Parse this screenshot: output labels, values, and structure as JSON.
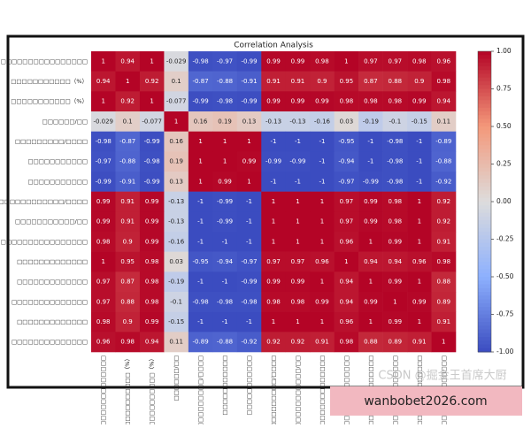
{
  "chart_data": {
    "type": "heatmap",
    "title": "Correlation Analysis",
    "colormap": "coolwarm",
    "clim": [
      -1,
      1
    ],
    "colorbar_ticks": [
      {
        "value": -1,
        "label": "-1.00"
      },
      {
        "value": -0.75,
        "label": "-0.75"
      },
      {
        "value": -0.5,
        "label": "-0.50"
      },
      {
        "value": -0.25,
        "label": "-0.25"
      },
      {
        "value": 0,
        "label": "0.00"
      },
      {
        "value": 0.25,
        "label": "0.25"
      },
      {
        "value": 0.5,
        "label": "0.50"
      },
      {
        "value": 0.75,
        "label": "0.75"
      },
      {
        "value": 1,
        "label": "1.00"
      }
    ],
    "categories": [
      "□□□□□□□□□□□□□□□□",
      "□□□□□□□□□□□（%）",
      "□□□□□□□□□□□（%）",
      "□□□□□□/□□",
      "□□□□□□□□□/□□□□",
      "□□□□□□□□□□□",
      "□□□□□□□□□□□",
      "□□□□□□□□□□□□/□□□□",
      "□□□□□□□□□□□/□□",
      "□□□□□□□□□□□□□□□□",
      "□□□□□□□□□□□□□",
      "□□□□□□□□□□□□□",
      "□□□□□□□□□□□□□□",
      "□□□□□□□□□□□□□",
      "□□□□□□□□□□□□□□"
    ],
    "z": [
      [
        1,
        0.94,
        1,
        -0.029,
        -0.98,
        -0.97,
        -0.99,
        0.99,
        0.99,
        0.98,
        1,
        0.97,
        0.97,
        0.98,
        0.96
      ],
      [
        0.94,
        1,
        0.92,
        0.1,
        -0.87,
        -0.88,
        -0.91,
        0.91,
        0.91,
        0.9,
        0.95,
        0.87,
        0.88,
        0.9,
        0.98
      ],
      [
        1,
        0.92,
        1,
        -0.077,
        -0.99,
        -0.98,
        -0.99,
        0.99,
        0.99,
        0.99,
        0.98,
        0.98,
        0.98,
        0.99,
        0.94
      ],
      [
        -0.029,
        0.1,
        -0.077,
        1,
        0.16,
        0.19,
        0.13,
        -0.13,
        -0.13,
        -0.16,
        0.03,
        -0.19,
        -0.1,
        -0.15,
        0.11
      ],
      [
        -0.98,
        -0.87,
        -0.99,
        0.16,
        1,
        1,
        1,
        -1,
        -1,
        -1,
        -0.95,
        -1,
        -0.98,
        -1,
        -0.89
      ],
      [
        -0.97,
        -0.88,
        -0.98,
        0.19,
        1,
        1,
        0.99,
        -0.99,
        -0.99,
        -1,
        -0.94,
        -1,
        -0.98,
        -1,
        -0.88
      ],
      [
        -0.99,
        -0.91,
        -0.99,
        0.13,
        1,
        0.99,
        1,
        -1,
        -1,
        -1,
        -0.97,
        -0.99,
        -0.98,
        -1,
        -0.92
      ],
      [
        0.99,
        0.91,
        0.99,
        -0.13,
        -1,
        -0.99,
        -1,
        1,
        1,
        1,
        0.97,
        0.99,
        0.98,
        1,
        0.92
      ],
      [
        0.99,
        0.91,
        0.99,
        -0.13,
        -1,
        -0.99,
        -1,
        1,
        1,
        1,
        0.97,
        0.99,
        0.98,
        1,
        0.92
      ],
      [
        0.98,
        0.9,
        0.99,
        -0.16,
        -1,
        -1,
        -1,
        1,
        1,
        1,
        0.96,
        1,
        0.99,
        1,
        0.91
      ],
      [
        1,
        0.95,
        0.98,
        0.03,
        -0.95,
        -0.94,
        -0.97,
        0.97,
        0.97,
        0.96,
        1,
        0.94,
        0.94,
        0.96,
        0.98
      ],
      [
        0.97,
        0.87,
        0.98,
        -0.19,
        -1,
        -1,
        -0.99,
        0.99,
        0.99,
        1,
        0.94,
        1,
        0.99,
        1,
        0.88
      ],
      [
        0.97,
        0.88,
        0.98,
        -0.1,
        -0.98,
        -0.98,
        -0.98,
        0.98,
        0.98,
        0.99,
        0.94,
        0.99,
        1,
        0.99,
        0.89
      ],
      [
        0.98,
        0.9,
        0.99,
        -0.15,
        -1,
        -1,
        -1,
        1,
        1,
        1,
        0.96,
        1,
        0.99,
        1,
        0.91
      ],
      [
        0.96,
        0.98,
        0.94,
        0.11,
        -0.89,
        -0.88,
        -0.92,
        0.92,
        0.92,
        0.91,
        0.98,
        0.88,
        0.89,
        0.91,
        1
      ]
    ],
    "watermark": "CSDN @掘金王首席大厨",
    "banner": "wanbobet2026.com"
  }
}
